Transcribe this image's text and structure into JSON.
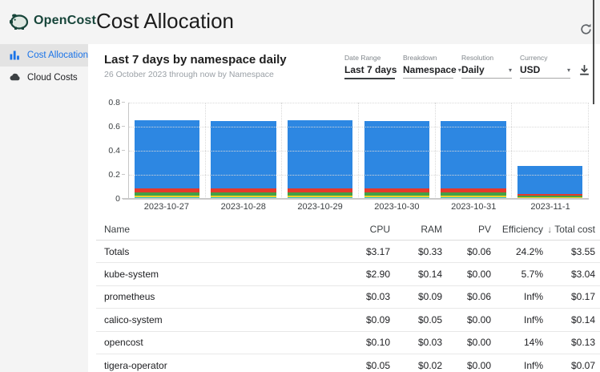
{
  "brand": {
    "name": "OpenCost"
  },
  "page": {
    "title": "Cost Allocation"
  },
  "icons": {
    "logo": "piggy-bank-icon",
    "refresh": "refresh-icon",
    "download": "download-icon",
    "sort_desc": "↓",
    "chevron_down": "▾"
  },
  "sidebar": {
    "items": [
      {
        "id": "cost-allocation",
        "label": "Cost Allocation",
        "icon": "bar-chart-icon",
        "selected": true
      },
      {
        "id": "cloud-costs",
        "label": "Cloud Costs",
        "icon": "cloud-icon",
        "selected": false
      }
    ]
  },
  "panel": {
    "title": "Last 7 days by namespace daily",
    "subtitle": "26 October 2023 through now by Namespace",
    "filters": [
      {
        "id": "date-range",
        "label": "Date Range",
        "value": "Last 7 days",
        "control": "input"
      },
      {
        "id": "breakdown",
        "label": "Breakdown",
        "value": "Namespace",
        "control": "select"
      },
      {
        "id": "resolution",
        "label": "Resolution",
        "value": "Daily",
        "control": "select"
      },
      {
        "id": "currency",
        "label": "Currency",
        "value": "USD",
        "control": "select"
      }
    ]
  },
  "chart_data": {
    "type": "bar",
    "stacked": true,
    "title": "Last 7 days by namespace daily",
    "xlabel": "",
    "ylabel": "",
    "ylim": [
      0,
      0.8
    ],
    "yticks": [
      0,
      0.2,
      0.4,
      0.6,
      0.8
    ],
    "grid": true,
    "legend": false,
    "categories": [
      "2023-10-27",
      "2023-10-28",
      "2023-10-29",
      "2023-10-30",
      "2023-10-31",
      "2023-11-1"
    ],
    "series": [
      {
        "name": "tigera-operator",
        "color": "#35c2c5",
        "values": [
          0.012,
          0.012,
          0.012,
          0.012,
          0.012,
          0.005
        ]
      },
      {
        "name": "prometheus",
        "color": "#f0d32c",
        "values": [
          0.015,
          0.015,
          0.015,
          0.015,
          0.015,
          0.007
        ]
      },
      {
        "name": "calico-system",
        "color": "#43a047",
        "values": [
          0.028,
          0.028,
          0.028,
          0.028,
          0.028,
          0.012
        ]
      },
      {
        "name": "opencost",
        "color": "#e5392c",
        "values": [
          0.03,
          0.03,
          0.03,
          0.03,
          0.03,
          0.013
        ]
      },
      {
        "name": "kube-system",
        "color": "#2d87e2",
        "values": [
          0.57,
          0.56,
          0.57,
          0.565,
          0.56,
          0.238
        ]
      }
    ]
  },
  "table": {
    "columns": [
      {
        "label": "Name",
        "align": "left"
      },
      {
        "label": "CPU",
        "align": "right"
      },
      {
        "label": "RAM",
        "align": "right"
      },
      {
        "label": "PV",
        "align": "right"
      },
      {
        "label": "Efficiency",
        "align": "right"
      },
      {
        "label": "Total cost",
        "align": "right",
        "sorted": "desc"
      }
    ],
    "rows": [
      {
        "name": "Totals",
        "cpu": "$3.17",
        "ram": "$0.33",
        "pv": "$0.06",
        "efficiency": "24.2%",
        "total": "$3.55"
      },
      {
        "name": "kube-system",
        "cpu": "$2.90",
        "ram": "$0.14",
        "pv": "$0.00",
        "efficiency": "5.7%",
        "total": "$3.04"
      },
      {
        "name": "prometheus",
        "cpu": "$0.03",
        "ram": "$0.09",
        "pv": "$0.06",
        "efficiency": "Inf%",
        "total": "$0.17"
      },
      {
        "name": "calico-system",
        "cpu": "$0.09",
        "ram": "$0.05",
        "pv": "$0.00",
        "efficiency": "Inf%",
        "total": "$0.14"
      },
      {
        "name": "opencost",
        "cpu": "$0.10",
        "ram": "$0.03",
        "pv": "$0.00",
        "efficiency": "14%",
        "total": "$0.13"
      },
      {
        "name": "tigera-operator",
        "cpu": "$0.05",
        "ram": "$0.02",
        "pv": "$0.00",
        "efficiency": "Inf%",
        "total": "$0.07"
      }
    ]
  },
  "colors": {
    "accent_blue": "#1a73e8",
    "brand_green": "#17453a",
    "header_bg": "#f4f4f4",
    "selected_bg": "#e3e3e3"
  }
}
